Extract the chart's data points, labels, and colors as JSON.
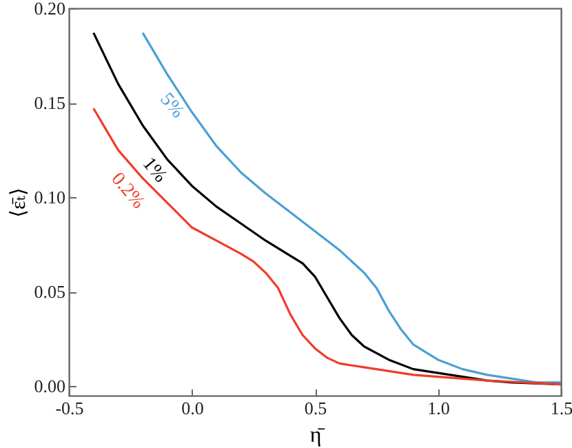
{
  "chart_data": {
    "type": "line",
    "xlabel": "η̄",
    "ylabel": "⟨ε̄ₜ⟩",
    "xlim": [
      -0.5,
      1.5
    ],
    "xticks": [
      {
        "value": -0.5,
        "label": "-0.5"
      },
      {
        "value": 0,
        "label": "0.0"
      },
      {
        "value": 0.5,
        "label": "0.5"
      },
      {
        "value": 1,
        "label": "1.0"
      },
      {
        "value": 1.5,
        "label": "1.5"
      }
    ],
    "ylim": [
      -0.005,
      0.2
    ],
    "yticks": [
      {
        "value": 0,
        "label": "0.00"
      },
      {
        "value": 0.05,
        "label": "0.05"
      },
      {
        "value": 0.1,
        "label": "0.10"
      },
      {
        "value": 0.15,
        "label": "0.15"
      },
      {
        "value": 0.2,
        "label": "0.20"
      }
    ],
    "series": [
      {
        "name": "5%",
        "color": "#4a9fd4",
        "x": [
          -0.2,
          -0.1,
          0,
          0.1,
          0.2,
          0.3,
          0.4,
          0.5,
          0.6,
          0.7,
          0.75,
          0.8,
          0.85,
          0.9,
          1.0,
          1.1,
          1.2,
          1.3,
          1.4,
          1.5
        ],
        "values": [
          0.187,
          0.165,
          0.145,
          0.127,
          0.113,
          0.102,
          0.092,
          0.082,
          0.072,
          0.06,
          0.052,
          0.04,
          0.03,
          0.022,
          0.014,
          0.009,
          0.006,
          0.004,
          0.002,
          0.002
        ]
      },
      {
        "name": "1%",
        "color": "#000000",
        "x": [
          -0.4,
          -0.3,
          -0.2,
          -0.1,
          0,
          0.1,
          0.2,
          0.3,
          0.4,
          0.45,
          0.5,
          0.55,
          0.6,
          0.65,
          0.7,
          0.8,
          0.9,
          1.0,
          1.1,
          1.2,
          1.3,
          1.5
        ],
        "values": [
          0.187,
          0.16,
          0.138,
          0.12,
          0.106,
          0.095,
          0.086,
          0.077,
          0.069,
          0.065,
          0.058,
          0.047,
          0.036,
          0.027,
          0.021,
          0.014,
          0.009,
          0.007,
          0.005,
          0.003,
          0.002,
          0.001
        ]
      },
      {
        "name": "0.2%",
        "color": "#f03c2a",
        "x": [
          -0.4,
          -0.3,
          -0.2,
          -0.1,
          0,
          0.1,
          0.2,
          0.25,
          0.3,
          0.35,
          0.4,
          0.45,
          0.5,
          0.55,
          0.6,
          0.7,
          0.8,
          0.9,
          1.0,
          1.2,
          1.5
        ],
        "values": [
          0.147,
          0.125,
          0.11,
          0.097,
          0.084,
          0.077,
          0.07,
          0.066,
          0.06,
          0.052,
          0.038,
          0.027,
          0.02,
          0.015,
          0.012,
          0.01,
          0.008,
          0.006,
          0.005,
          0.003,
          0.001
        ]
      }
    ]
  }
}
